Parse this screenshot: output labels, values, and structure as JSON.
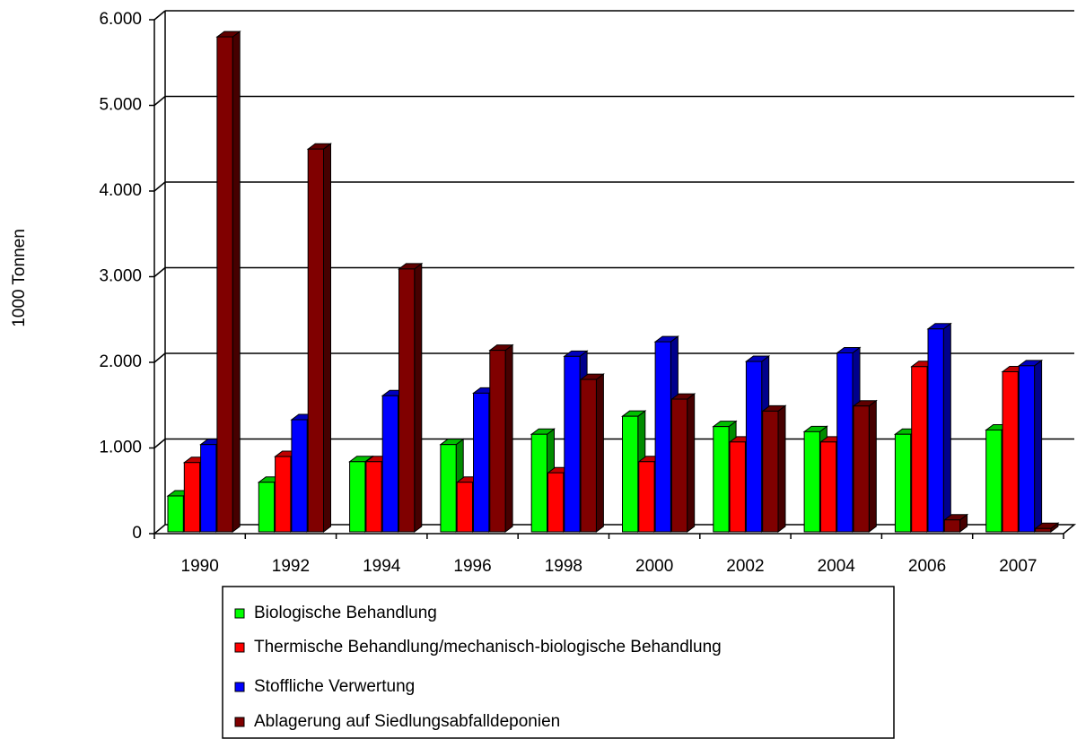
{
  "chart_data": {
    "type": "bar3d",
    "y_label": "1000 Tonnen",
    "categories": [
      "1990",
      "1992",
      "1994",
      "1996",
      "1998",
      "2000",
      "2002",
      "2004",
      "2006",
      "2007"
    ],
    "series": [
      {
        "name": "Biologische Behandlung",
        "color": "#00ff00",
        "values": [
          440,
          600,
          840,
          1040,
          1160,
          1370,
          1250,
          1190,
          1160,
          1210
        ]
      },
      {
        "name": "Thermische Behandlung/mechanisch-biologische Behandlung",
        "color": "#ff0000",
        "values": [
          830,
          900,
          840,
          600,
          710,
          840,
          1070,
          1070,
          1950,
          1890
        ]
      },
      {
        "name": "Stoffliche Verwertung",
        "color": "#0000ff",
        "values": [
          1040,
          1330,
          1610,
          1640,
          2070,
          2240,
          2010,
          2110,
          2390,
          1960
        ]
      },
      {
        "name": "Ablagerung auf Siedlungsabfalldeponien",
        "color": "#800000",
        "values": [
          5800,
          4490,
          3090,
          2140,
          1800,
          1570,
          1430,
          1490,
          160,
          60
        ]
      }
    ],
    "ylim": [
      0,
      6000
    ],
    "yticks": [
      0,
      {
        "value": 1000,
        "label": "1.000"
      },
      {
        "value": 2000,
        "label": "2.000"
      },
      {
        "value": 3000,
        "label": "3.000"
      },
      {
        "value": 4000,
        "label": "4.000"
      },
      {
        "value": 5000,
        "label": "5.000"
      },
      {
        "value": 6000,
        "label": "6.000"
      }
    ],
    "grid": true
  }
}
